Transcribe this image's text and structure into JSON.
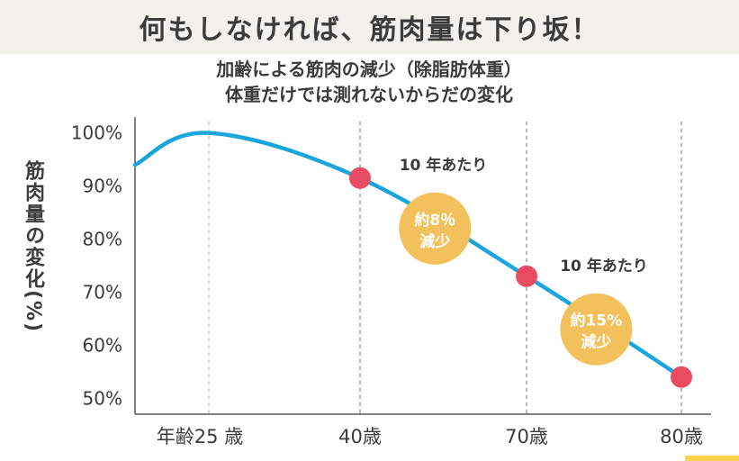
{
  "banner": {
    "title": "何もしなければ、筋肉量は下り坂！"
  },
  "chart_data": {
    "type": "line",
    "title_lines": [
      "加齢による筋肉の減少（除脂肪体重）",
      "体重だけでは測れないからだの変化"
    ],
    "ylabel": "筋肉量の変化(%)",
    "ylim": [
      47,
      103
    ],
    "y_ticks": [
      100,
      90,
      80,
      70,
      60,
      50
    ],
    "y_tick_labels": [
      "100%",
      "90%",
      "80%",
      "70%",
      "60%",
      "50%"
    ],
    "x_ticks": [
      "年齢25 歳",
      "40歳",
      "70歳",
      "80歳"
    ],
    "series": [
      {
        "points": [
          {
            "x": 0,
            "y": 94
          },
          {
            "x": 1,
            "y": 100
          },
          {
            "x": 2,
            "y": 91.5
          },
          {
            "x": 3,
            "y": 73
          },
          {
            "x": 4,
            "y": 54
          }
        ]
      }
    ],
    "markers": [
      {
        "x": 2,
        "y": 91.5
      },
      {
        "x": 3,
        "y": 73
      },
      {
        "x": 4,
        "y": 54
      }
    ],
    "annotations": [
      {
        "text": "10 年あたり",
        "x": 2.5,
        "y": 93
      },
      {
        "text": "10 年あたり",
        "x": 3.5,
        "y": 74
      }
    ],
    "badges": [
      {
        "line1": "約8％",
        "line2": "減少",
        "x": 2.45,
        "y": 82
      },
      {
        "line1": "約15%",
        "line2": "減少",
        "x": 3.45,
        "y": 63
      }
    ],
    "colors": {
      "line": "#1aa6dc",
      "marker": "#e94b62",
      "badge": "#f3c15c",
      "grid": "#888888"
    }
  }
}
